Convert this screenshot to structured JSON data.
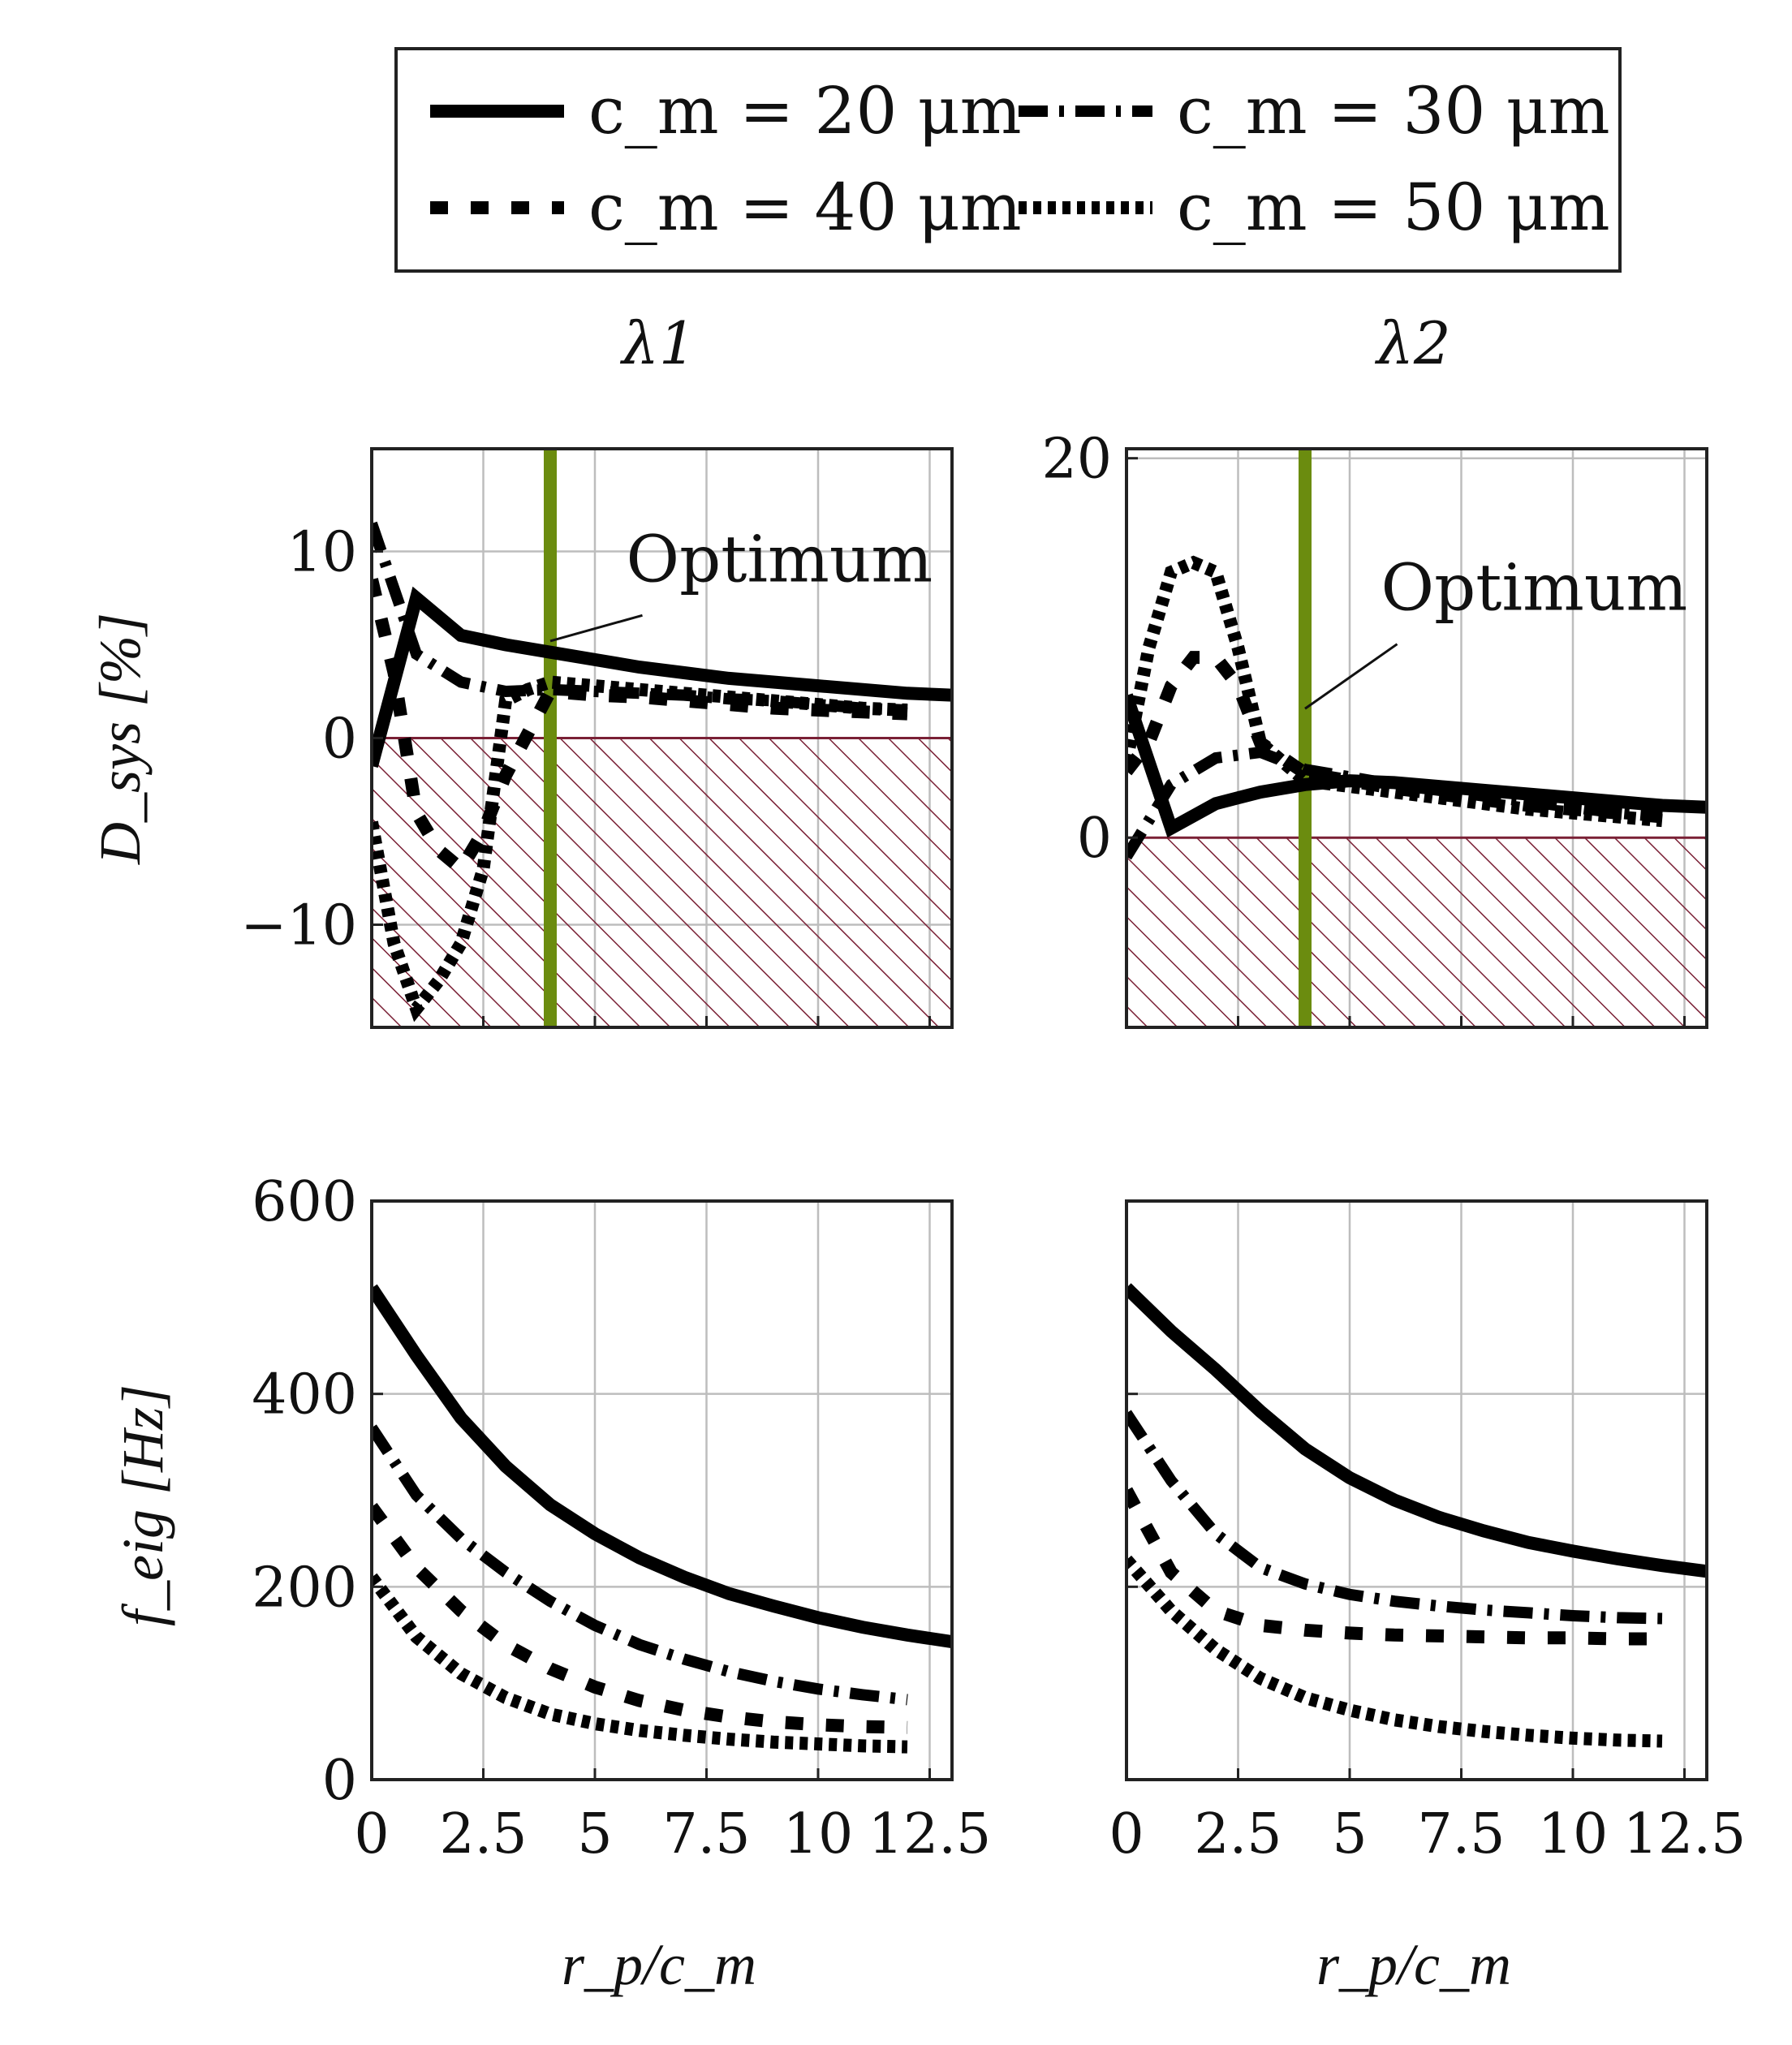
{
  "chart_data": [
    {
      "id": "panel-lambda1-damping",
      "type": "line",
      "column_title": "λ1",
      "ylabel": "D_sys [%]",
      "xlim": [
        0,
        13
      ],
      "ylim": [
        -15.5,
        15.5
      ],
      "xticks": [
        0,
        2.5,
        5,
        7.5,
        10,
        12.5
      ],
      "yticks": [
        -10,
        0,
        10
      ],
      "ytick_labels": [
        "−10",
        "0",
        "10"
      ],
      "grid": true,
      "hatched_region": {
        "y_from": -15.5,
        "y_to": 0,
        "color": "#7a2035"
      },
      "optimum_line": {
        "x": 4,
        "color": "#6b8c0f"
      },
      "annotation": {
        "text": "Optimum",
        "arrow_to": [
          4,
          5.2
        ],
        "text_at": [
          5.7,
          8.4
        ]
      },
      "series": [
        {
          "name": "c_m = 20 μm",
          "x": [
            0,
            1,
            2,
            3,
            4,
            5,
            6,
            7,
            8,
            9,
            10,
            11,
            12,
            13
          ],
          "y": [
            -1.5,
            7.5,
            5.5,
            5.0,
            4.6,
            4.2,
            3.8,
            3.5,
            3.2,
            3.0,
            2.8,
            2.6,
            2.4,
            2.3
          ]
        },
        {
          "name": "c_m = 30 μm",
          "x": [
            0,
            1,
            2,
            3,
            4,
            5,
            6,
            7,
            8,
            9,
            10,
            11,
            12
          ],
          "y": [
            11.5,
            4.5,
            3.0,
            2.5,
            2.6,
            2.5,
            2.4,
            2.3,
            2.1,
            2.0,
            1.8,
            1.6,
            1.5
          ]
        },
        {
          "name": "c_m = 40 μm",
          "x": [
            0,
            0.5,
            1,
            1.5,
            2,
            2.5,
            3,
            4,
            5,
            6,
            7,
            8,
            9,
            10,
            11,
            12
          ],
          "y": [
            8.5,
            3.5,
            -4.0,
            -6.0,
            -7.0,
            -5.0,
            -2.0,
            2.5,
            2.3,
            2.2,
            2.0,
            1.8,
            1.6,
            1.5,
            1.4,
            1.3
          ]
        },
        {
          "name": "c_m = 50 μm",
          "x": [
            0,
            0.5,
            1,
            1.5,
            2,
            2.5,
            3,
            3.5,
            4,
            5,
            6,
            7,
            8,
            9,
            10,
            11,
            12
          ],
          "y": [
            -4.5,
            -11,
            -14.5,
            -13,
            -11,
            -7,
            2,
            2.6,
            3.0,
            2.8,
            2.6,
            2.4,
            2.2,
            2.0,
            1.8,
            1.6,
            1.5
          ]
        }
      ]
    },
    {
      "id": "panel-lambda2-damping",
      "type": "line",
      "column_title": "λ2",
      "xlim": [
        0,
        13
      ],
      "ylim": [
        -10,
        20.5
      ],
      "xticks": [
        0,
        2.5,
        5,
        7.5,
        10,
        12.5
      ],
      "yticks": [
        0,
        20
      ],
      "ytick_labels": [
        "0",
        "20"
      ],
      "grid": true,
      "hatched_region": {
        "y_from": -10,
        "y_to": 0,
        "color": "#7a2035"
      },
      "optimum_line": {
        "x": 4,
        "color": "#6b8c0f"
      },
      "annotation": {
        "text": "Optimum",
        "arrow_to": [
          4,
          6.8
        ],
        "text_at": [
          5.7,
          12
        ]
      },
      "series": [
        {
          "name": "c_m = 20 μm",
          "x": [
            0,
            1,
            2,
            3,
            4,
            5,
            6,
            7,
            8,
            9,
            10,
            11,
            12,
            13
          ],
          "y": [
            7.5,
            0.5,
            1.8,
            2.4,
            2.8,
            3.0,
            2.9,
            2.7,
            2.5,
            2.3,
            2.1,
            1.9,
            1.7,
            1.6
          ]
        },
        {
          "name": "c_m = 30 μm",
          "x": [
            0,
            1,
            2,
            3,
            4,
            5,
            6,
            7,
            8,
            9,
            10,
            11,
            12
          ],
          "y": [
            -1,
            2.8,
            4.2,
            4.5,
            3.6,
            3.2,
            2.8,
            2.5,
            2.2,
            1.9,
            1.6,
            1.3,
            1.1
          ]
        },
        {
          "name": "c_m = 40 μm",
          "x": [
            0,
            0.5,
            1,
            1.5,
            2,
            2.5,
            3,
            4,
            5,
            6,
            7,
            8,
            9,
            10,
            11,
            12
          ],
          "y": [
            3.5,
            5,
            8,
            9.5,
            9.5,
            8,
            5,
            3.4,
            3.0,
            2.6,
            2.3,
            2.0,
            1.7,
            1.5,
            1.3,
            1.1
          ]
        },
        {
          "name": "c_m = 50 μm",
          "x": [
            0,
            0.5,
            1,
            1.5,
            2,
            2.5,
            3,
            4,
            5,
            6,
            7,
            8,
            9,
            10,
            11,
            12
          ],
          "y": [
            4,
            10,
            14,
            14.5,
            14,
            10,
            5,
            3.0,
            2.7,
            2.4,
            2.1,
            1.8,
            1.5,
            1.3,
            1.1,
            0.9
          ]
        }
      ]
    },
    {
      "id": "panel-lambda1-frequency",
      "type": "line",
      "ylabel": "f_eig [Hz]",
      "xlabel": "r_p/c_m",
      "xlim": [
        0,
        13
      ],
      "ylim": [
        0,
        600
      ],
      "xticks": [
        0,
        2.5,
        5,
        7.5,
        10,
        12.5
      ],
      "xtick_labels": [
        "0",
        "2.5",
        "5",
        "7.5",
        "10",
        "12.5"
      ],
      "yticks": [
        0,
        200,
        400,
        600
      ],
      "ytick_labels": [
        "0",
        "200",
        "400",
        "600"
      ],
      "grid": true,
      "series": [
        {
          "name": "c_m = 20 μm",
          "x": [
            0,
            1,
            2,
            3,
            4,
            5,
            6,
            7,
            8,
            9,
            10,
            11,
            12,
            13
          ],
          "y": [
            510,
            440,
            375,
            325,
            285,
            255,
            230,
            210,
            193,
            180,
            168,
            158,
            150,
            143
          ]
        },
        {
          "name": "c_m = 30 μm",
          "x": [
            0,
            1,
            2,
            3,
            4,
            5,
            6,
            7,
            8,
            9,
            10,
            11,
            12
          ],
          "y": [
            365,
            295,
            250,
            215,
            185,
            160,
            140,
            125,
            112,
            102,
            94,
            88,
            83
          ]
        },
        {
          "name": "c_m = 40 μm",
          "x": [
            0,
            1,
            2,
            3,
            4,
            5,
            6,
            7,
            8,
            9,
            10,
            11,
            12
          ],
          "y": [
            283,
            220,
            175,
            140,
            115,
            96,
            82,
            72,
            65,
            60,
            57,
            55,
            54
          ]
        },
        {
          "name": "c_m = 50 μm",
          "x": [
            0,
            1,
            2,
            3,
            4,
            5,
            6,
            7,
            8,
            9,
            10,
            11,
            12
          ],
          "y": [
            210,
            148,
            110,
            85,
            68,
            58,
            51,
            46,
            42,
            39,
            37,
            35,
            34
          ]
        }
      ]
    },
    {
      "id": "panel-lambda2-frequency",
      "type": "line",
      "xlabel": "r_p/c_m",
      "xlim": [
        0,
        13
      ],
      "ylim": [
        0,
        600
      ],
      "xticks": [
        0,
        2.5,
        5,
        7.5,
        10,
        12.5
      ],
      "xtick_labels": [
        "0",
        "2.5",
        "5",
        "7.5",
        "10",
        "12.5"
      ],
      "yticks": [
        0,
        200,
        400,
        600
      ],
      "grid": true,
      "series": [
        {
          "name": "c_m = 20 μm",
          "x": [
            0,
            1,
            2,
            3,
            4,
            5,
            6,
            7,
            8,
            9,
            10,
            11,
            12,
            13
          ],
          "y": [
            510,
            465,
            425,
            382,
            343,
            313,
            290,
            272,
            258,
            246,
            237,
            229,
            222,
            216
          ]
        },
        {
          "name": "c_m = 30 μm",
          "x": [
            0,
            1,
            2,
            3,
            4,
            5,
            6,
            7,
            8,
            9,
            10,
            11,
            12
          ],
          "y": [
            380,
            310,
            255,
            220,
            203,
            192,
            185,
            180,
            176,
            173,
            170,
            168,
            167
          ]
        },
        {
          "name": "c_m = 40 μm",
          "x": [
            0,
            1,
            2,
            3,
            4,
            5,
            6,
            7,
            8,
            9,
            10,
            11,
            12
          ],
          "y": [
            300,
            215,
            175,
            160,
            155,
            152,
            150,
            149,
            148,
            147,
            147,
            146,
            146
          ]
        },
        {
          "name": "c_m = 50 μm",
          "x": [
            0,
            1,
            2,
            3,
            4,
            5,
            6,
            7,
            8,
            9,
            10,
            11,
            12
          ],
          "y": [
            228,
            175,
            135,
            105,
            85,
            72,
            62,
            55,
            50,
            46,
            43,
            41,
            40
          ]
        }
      ]
    }
  ],
  "legend": {
    "placement": "top-center",
    "entries": [
      {
        "label": "c_m = 20 μm",
        "style": "solid"
      },
      {
        "label": "c_m = 30 μm",
        "style": "dashdot"
      },
      {
        "label": "c_m = 40 μm",
        "style": "dashed"
      },
      {
        "label": "c_m = 50 μm",
        "style": "dotted"
      }
    ]
  },
  "series_styles": [
    {
      "dash": "",
      "width": 16
    },
    {
      "dash": "36 14 6 14",
      "width": 14
    },
    {
      "dash": "22 28",
      "width": 16
    },
    {
      "dash": "10 8",
      "width": 16
    }
  ],
  "colors": {
    "line": "#000000",
    "grid": "#bdbdbd",
    "hatch": "#7a2035",
    "optimum": "#6b8c0f",
    "frame": "#222222"
  }
}
